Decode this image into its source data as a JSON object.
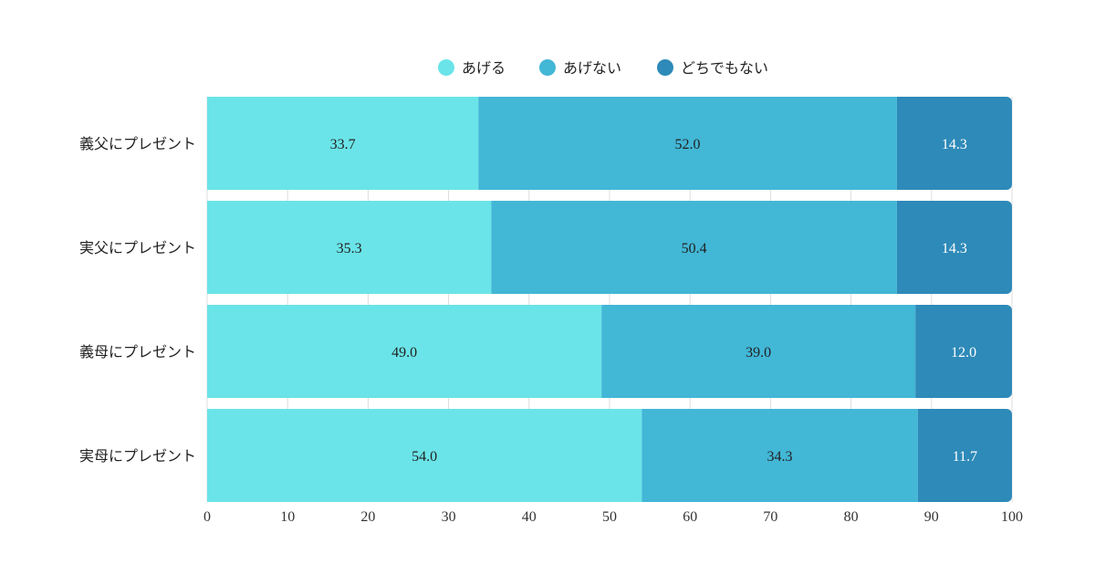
{
  "colors": {
    "series": [
      "#6ae4e8",
      "#42b7d6",
      "#2e8ab8"
    ],
    "label_dark": "#222222",
    "label_light": "#ffffff",
    "grid": "#dddddd",
    "axis_text": "#333333"
  },
  "chart_data": {
    "type": "bar",
    "orientation": "horizontal",
    "stacked": true,
    "categories": [
      "義父にプレゼント",
      "実父にプレゼント",
      "義母にプレゼント",
      "実母にプレゼント"
    ],
    "series": [
      {
        "name": "あげる",
        "values": [
          33.7,
          35.3,
          49.0,
          54.0
        ]
      },
      {
        "name": "あげない",
        "values": [
          52.0,
          50.4,
          39.0,
          34.3
        ]
      },
      {
        "name": "どちでもない",
        "values": [
          14.3,
          14.3,
          12.0,
          11.7
        ]
      }
    ],
    "xlim": [
      0,
      100
    ],
    "xticks": [
      0,
      10,
      20,
      30,
      40,
      50,
      60,
      70,
      80,
      90,
      100
    ],
    "legend_position": "top",
    "grid": true,
    "data_labels": true
  }
}
